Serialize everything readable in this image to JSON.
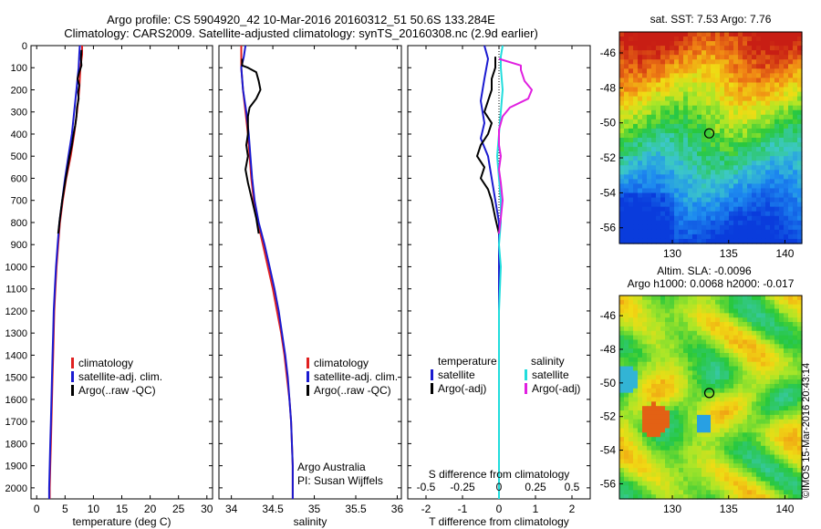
{
  "header": {
    "line1": "Argo profile: CS 5904920_42 10-Mar-2016 20160312_51 50.6S 133.284E",
    "line2": "Climatology: CARS2009. Satellite-adjusted climatology: synTS_20160308.nc (2.9d earlier)"
  },
  "credit": "©IMOS 15-Mar-2016 20:43:14",
  "colors": {
    "climatology": "#e02020",
    "satellite": "#1a1ad0",
    "argo": "#000000",
    "sal_satellite": "#22dddd",
    "sal_argo": "#e020e0"
  },
  "chart_data": [
    {
      "type": "line",
      "id": "temperature",
      "xlabel": "temperature (deg C)",
      "xlim": [
        -1,
        31
      ],
      "xticks": [
        0,
        5,
        10,
        15,
        20,
        25,
        30
      ],
      "ylim": [
        0,
        2050
      ],
      "yticks": [
        0,
        100,
        200,
        300,
        400,
        500,
        600,
        700,
        800,
        900,
        1000,
        1100,
        1200,
        1300,
        1400,
        1500,
        1600,
        1700,
        1800,
        1900,
        2000
      ],
      "legend": [
        "climatology",
        "satellite-adj. clim.",
        "Argo(..raw -QC)"
      ],
      "series": [
        {
          "name": "climatology",
          "color": "#e02020",
          "points": [
            [
              8.0,
              0
            ],
            [
              8.0,
              40
            ],
            [
              7.7,
              100
            ],
            [
              7.5,
              200
            ],
            [
              7.1,
              300
            ],
            [
              6.6,
              400
            ],
            [
              6.0,
              500
            ],
            [
              5.2,
              600
            ],
            [
              4.6,
              700
            ],
            [
              4.1,
              800
            ],
            [
              3.8,
              900
            ],
            [
              3.5,
              1000
            ],
            [
              3.3,
              1100
            ],
            [
              3.1,
              1200
            ],
            [
              3.0,
              1300
            ],
            [
              2.9,
              1400
            ],
            [
              2.8,
              1500
            ],
            [
              2.7,
              1600
            ],
            [
              2.6,
              1700
            ],
            [
              2.5,
              1800
            ],
            [
              2.4,
              1900
            ],
            [
              2.3,
              2000
            ],
            [
              2.3,
              2050
            ]
          ]
        },
        {
          "name": "satellite-adj. clim.",
          "color": "#1a1ad0",
          "points": [
            [
              7.6,
              0
            ],
            [
              7.5,
              40
            ],
            [
              7.4,
              100
            ],
            [
              7.0,
              200
            ],
            [
              6.6,
              300
            ],
            [
              6.2,
              400
            ],
            [
              5.6,
              500
            ],
            [
              5.0,
              600
            ],
            [
              4.5,
              700
            ],
            [
              4.0,
              800
            ],
            [
              3.7,
              900
            ],
            [
              3.4,
              1000
            ],
            [
              3.2,
              1100
            ],
            [
              3.0,
              1200
            ],
            [
              2.9,
              1300
            ],
            [
              2.8,
              1400
            ],
            [
              2.7,
              1500
            ],
            [
              2.6,
              1600
            ],
            [
              2.5,
              1700
            ],
            [
              2.4,
              1800
            ],
            [
              2.3,
              1900
            ],
            [
              2.2,
              2000
            ],
            [
              2.2,
              2050
            ]
          ]
        },
        {
          "name": "Argo(..raw -QC)",
          "color": "#000000",
          "points": [
            [
              7.9,
              20
            ],
            [
              7.8,
              60
            ],
            [
              7.9,
              90
            ],
            [
              7.5,
              120
            ],
            [
              7.2,
              150
            ],
            [
              7.5,
              180
            ],
            [
              7.3,
              210
            ],
            [
              7.4,
              240
            ],
            [
              7.1,
              280
            ],
            [
              7.0,
              320
            ],
            [
              6.8,
              360
            ],
            [
              6.5,
              400
            ],
            [
              6.2,
              450
            ],
            [
              5.8,
              500
            ],
            [
              5.4,
              560
            ],
            [
              5.0,
              620
            ],
            [
              4.5,
              700
            ],
            [
              4.1,
              780
            ],
            [
              3.8,
              850
            ]
          ]
        }
      ]
    },
    {
      "type": "line",
      "id": "salinity",
      "xlabel": "salinity",
      "xlim": [
        33.85,
        36.05
      ],
      "xticks": [
        34,
        34.5,
        35,
        35.5,
        36
      ],
      "ylim": [
        0,
        2050
      ],
      "legend": [
        "climatology",
        "satellite-adj. clim.",
        "Argo(..raw -QC)"
      ],
      "annotation": [
        "Argo Australia",
        "PI: Susan Wijffels"
      ],
      "series": [
        {
          "name": "climatology",
          "color": "#e02020",
          "points": [
            [
              34.12,
              0
            ],
            [
              34.12,
              50
            ],
            [
              34.12,
              100
            ],
            [
              34.14,
              200
            ],
            [
              34.17,
              300
            ],
            [
              34.2,
              400
            ],
            [
              34.22,
              500
            ],
            [
              34.24,
              600
            ],
            [
              34.27,
              700
            ],
            [
              34.32,
              800
            ],
            [
              34.38,
              900
            ],
            [
              34.44,
              1000
            ],
            [
              34.5,
              1100
            ],
            [
              34.55,
              1200
            ],
            [
              34.6,
              1300
            ],
            [
              34.64,
              1400
            ],
            [
              34.67,
              1500
            ],
            [
              34.7,
              1600
            ],
            [
              34.72,
              1700
            ],
            [
              34.73,
              1800
            ],
            [
              34.74,
              1900
            ],
            [
              34.74,
              2000
            ],
            [
              34.74,
              2050
            ]
          ]
        },
        {
          "name": "satellite-adj. clim.",
          "color": "#1a1ad0",
          "points": [
            [
              34.17,
              0
            ],
            [
              34.15,
              50
            ],
            [
              34.12,
              100
            ],
            [
              34.14,
              200
            ],
            [
              34.18,
              300
            ],
            [
              34.21,
              400
            ],
            [
              34.23,
              500
            ],
            [
              34.25,
              600
            ],
            [
              34.28,
              700
            ],
            [
              34.33,
              800
            ],
            [
              34.4,
              900
            ],
            [
              34.46,
              1000
            ],
            [
              34.52,
              1100
            ],
            [
              34.57,
              1200
            ],
            [
              34.61,
              1300
            ],
            [
              34.65,
              1400
            ],
            [
              34.68,
              1500
            ],
            [
              34.7,
              1600
            ],
            [
              34.72,
              1700
            ],
            [
              34.73,
              1800
            ],
            [
              34.74,
              1900
            ],
            [
              34.74,
              2000
            ],
            [
              34.74,
              2050
            ]
          ]
        },
        {
          "name": "Argo(..raw -QC)",
          "color": "#000000",
          "points": [
            [
              34.13,
              60
            ],
            [
              34.13,
              90
            ],
            [
              34.2,
              100
            ],
            [
              34.3,
              120
            ],
            [
              34.33,
              160
            ],
            [
              34.35,
              200
            ],
            [
              34.3,
              240
            ],
            [
              34.22,
              280
            ],
            [
              34.2,
              320
            ],
            [
              34.2,
              400
            ],
            [
              34.18,
              450
            ],
            [
              34.2,
              500
            ],
            [
              34.17,
              560
            ],
            [
              34.2,
              620
            ],
            [
              34.25,
              700
            ],
            [
              34.3,
              780
            ],
            [
              34.33,
              850
            ]
          ]
        }
      ]
    },
    {
      "type": "line",
      "id": "difference",
      "xlabel": "T difference from climatology",
      "xlabel2": "S difference from climatology",
      "xlim": [
        -2.5,
        2.5
      ],
      "xticks": [
        -2,
        -1,
        0,
        1,
        2
      ],
      "xticks2": [
        "-0.5",
        "-0.25",
        "0",
        "0.25",
        "0.5"
      ],
      "ylim": [
        0,
        2050
      ],
      "legend_headers": [
        "temperature",
        "salinity"
      ],
      "legend": [
        "satellite",
        "Argo(-adj)",
        "satellite",
        "Argo(-adj)"
      ],
      "series": [
        {
          "name": "temperature satellite",
          "color": "#1a1ad0",
          "points": [
            [
              -0.4,
              0
            ],
            [
              -0.3,
              60
            ],
            [
              -0.4,
              150
            ],
            [
              -0.5,
              250
            ],
            [
              -0.4,
              350
            ],
            [
              -0.5,
              420
            ],
            [
              -0.3,
              500
            ],
            [
              -0.2,
              600
            ],
            [
              -0.1,
              700
            ],
            [
              0,
              800
            ],
            [
              0,
              900
            ],
            [
              0,
              1000
            ],
            [
              0,
              1200
            ],
            [
              0,
              1400
            ],
            [
              0,
              1600
            ],
            [
              0,
              1800
            ],
            [
              0,
              2000
            ],
            [
              0,
              2050
            ]
          ]
        },
        {
          "name": "temperature Argo(-adj)",
          "color": "#000000",
          "points": [
            [
              -0.1,
              50
            ],
            [
              -0.1,
              100
            ],
            [
              -0.2,
              150
            ],
            [
              -0.2,
              200
            ],
            [
              -0.3,
              250
            ],
            [
              -0.4,
              300
            ],
            [
              -0.2,
              350
            ],
            [
              -0.3,
              400
            ],
            [
              -0.5,
              450
            ],
            [
              -0.6,
              500
            ],
            [
              -0.4,
              550
            ],
            [
              -0.5,
              600
            ],
            [
              -0.3,
              650
            ],
            [
              -0.2,
              700
            ],
            [
              -0.1,
              780
            ],
            [
              0,
              850
            ]
          ]
        },
        {
          "name": "salinity satellite",
          "color": "#22dddd",
          "points": [
            [
              0.1,
              0
            ],
            [
              0.05,
              50
            ],
            [
              0.05,
              100
            ],
            [
              0.1,
              200
            ],
            [
              0.05,
              300
            ],
            [
              0.0,
              400
            ],
            [
              -0.05,
              500
            ],
            [
              0.0,
              600
            ],
            [
              0.05,
              700
            ],
            [
              0.05,
              800
            ],
            [
              0.0,
              900
            ],
            [
              0.05,
              1000
            ],
            [
              0.0,
              1200
            ],
            [
              0.0,
              1400
            ],
            [
              0.0,
              1600
            ],
            [
              0.0,
              1800
            ],
            [
              0.0,
              2000
            ],
            [
              0.0,
              2050
            ]
          ]
        },
        {
          "name": "salinity Argo(-adj)",
          "color": "#e020e0",
          "points": [
            [
              0.0,
              60
            ],
            [
              0.6,
              90
            ],
            [
              0.6,
              110
            ],
            [
              0.7,
              160
            ],
            [
              0.9,
              200
            ],
            [
              0.8,
              240
            ],
            [
              0.3,
              280
            ],
            [
              0.1,
              320
            ],
            [
              0.0,
              380
            ],
            [
              0.0,
              450
            ],
            [
              0.05,
              500
            ],
            [
              0.0,
              560
            ],
            [
              0.05,
              620
            ],
            [
              0.1,
              700
            ],
            [
              0.05,
              780
            ],
            [
              0.0,
              850
            ]
          ]
        }
      ]
    },
    {
      "type": "heatmap",
      "id": "sst_map",
      "title": "sat. SST: 7.53 Argo: 7.76",
      "xticks": [
        130,
        135,
        140
      ],
      "yticks": [
        -46,
        -48,
        -50,
        -52,
        -54,
        -56
      ],
      "xlim": [
        125.3,
        141.5
      ],
      "ylim": [
        -56.9,
        -44.8
      ],
      "marker": [
        133.28,
        -50.6
      ]
    },
    {
      "type": "heatmap",
      "id": "sla_map",
      "title": "Altim. SLA: -0.0096",
      "subtitle": "Argo h1000: 0.0068 h2000: -0.017",
      "xticks": [
        130,
        135,
        140
      ],
      "yticks": [
        -46,
        -48,
        -50,
        -52,
        -54,
        -56
      ],
      "xlim": [
        125.3,
        141.5
      ],
      "ylim": [
        -56.9,
        -44.8
      ],
      "marker": [
        133.28,
        -50.6
      ]
    }
  ]
}
